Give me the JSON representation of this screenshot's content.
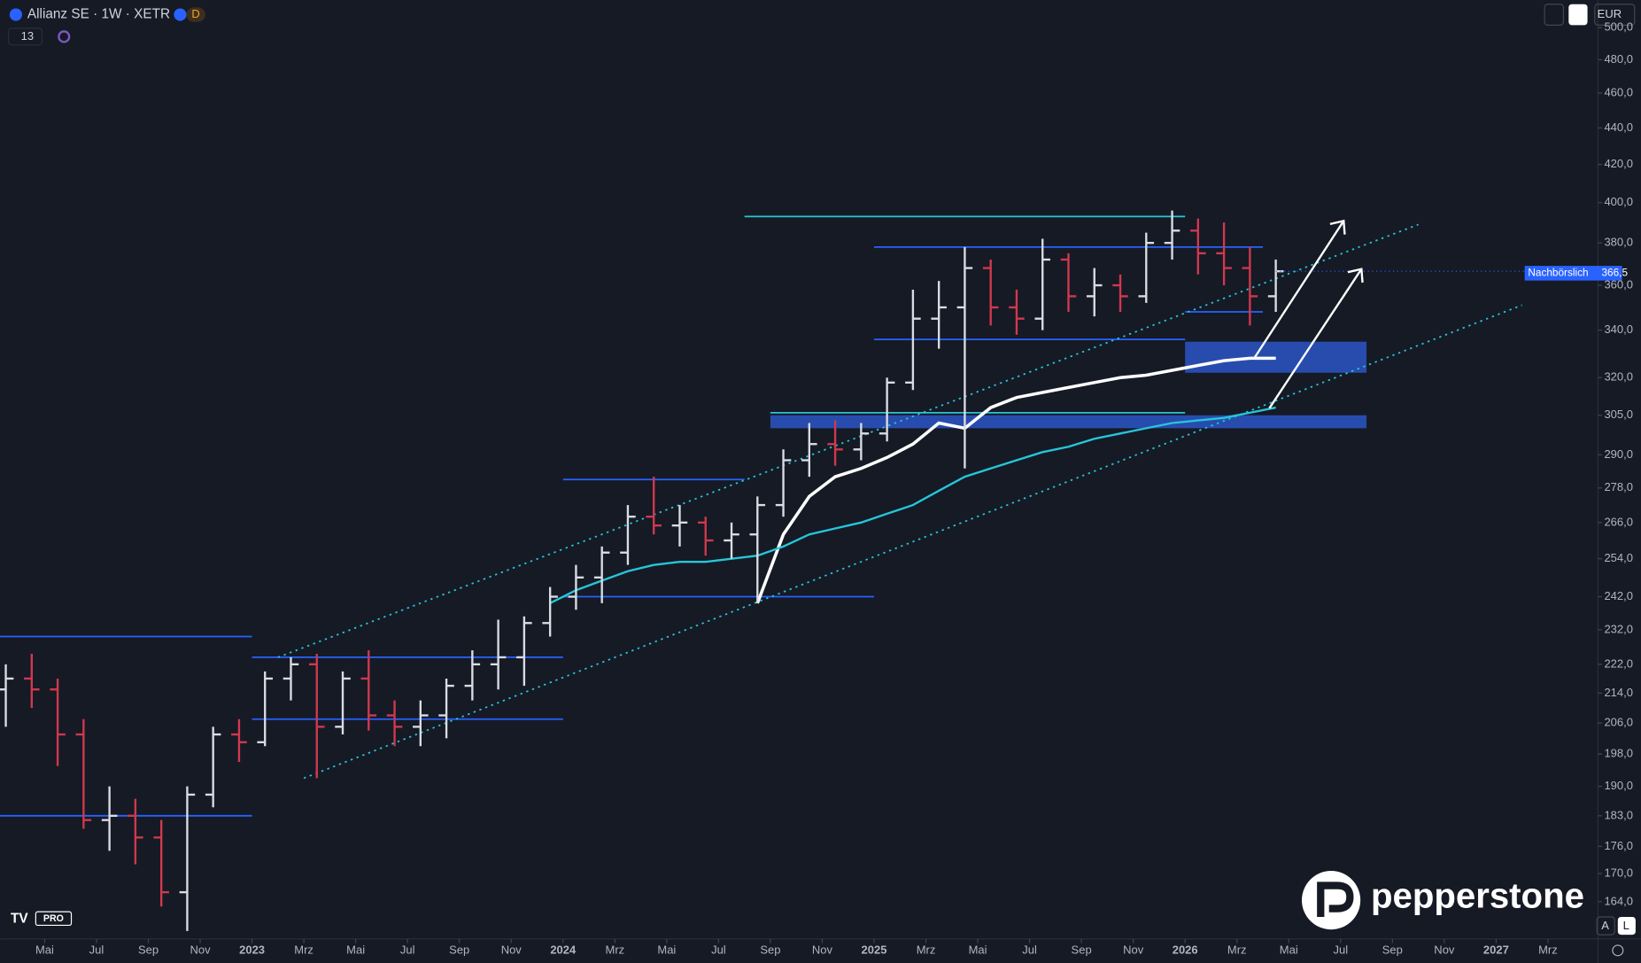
{
  "header": {
    "symbol": "Allianz SE · 1W · XETR",
    "badge": "D",
    "indicator_count": "13",
    "currency": "EUR"
  },
  "price_tag": {
    "label": "Nachbörslich",
    "value": "366,5"
  },
  "logo": {
    "brand": "pepperstone",
    "tv": "PRO"
  },
  "scale_buttons": [
    "A",
    "L"
  ],
  "chart_data": {
    "type": "ohlc",
    "log_scale": true,
    "up_color": "#d9dce3",
    "down_color": "#d0394e",
    "x": [
      "2022-03",
      "2022-04",
      "2022-05",
      "2022-06",
      "2022-07",
      "2022-08",
      "2022-09",
      "2022-10",
      "2022-11",
      "2022-12",
      "2023-01",
      "2023-02",
      "2023-03",
      "2023-04",
      "2023-05",
      "2023-06",
      "2023-07",
      "2023-08",
      "2023-09",
      "2023-10",
      "2023-11",
      "2023-12",
      "2024-01",
      "2024-02",
      "2024-03",
      "2024-04",
      "2024-05",
      "2024-06",
      "2024-07",
      "2024-08",
      "2024-09",
      "2024-10",
      "2024-11",
      "2024-12",
      "2025-01",
      "2025-02",
      "2025-03",
      "2025-04",
      "2025-05",
      "2025-06",
      "2025-07",
      "2025-08",
      "2025-09",
      "2025-10",
      "2025-11",
      "2025-12",
      "2026-01",
      "2026-02",
      "2026-03",
      "2026-04"
    ],
    "open": [
      215,
      218,
      215,
      203,
      182,
      183,
      178,
      166,
      188,
      203,
      201,
      218,
      222,
      205,
      218,
      208,
      205,
      208,
      216,
      222,
      224,
      234,
      242,
      248,
      256,
      268,
      265,
      266,
      260,
      262,
      272,
      288,
      294,
      292,
      298,
      318,
      345,
      350,
      368,
      350,
      345,
      372,
      355,
      360,
      355,
      380,
      386,
      375,
      368,
      355
    ],
    "high": [
      222,
      225,
      218,
      207,
      190,
      187,
      182,
      190,
      205,
      207,
      220,
      224,
      225,
      220,
      226,
      212,
      212,
      218,
      226,
      235,
      236,
      245,
      252,
      258,
      272,
      282,
      272,
      268,
      266,
      275,
      292,
      302,
      303,
      302,
      320,
      358,
      362,
      378,
      372,
      358,
      382,
      375,
      368,
      365,
      385,
      396,
      392,
      390,
      378,
      372
    ],
    "low": [
      205,
      210,
      195,
      180,
      175,
      172,
      163,
      158,
      185,
      196,
      200,
      212,
      192,
      203,
      204,
      200,
      200,
      202,
      212,
      215,
      216,
      230,
      238,
      240,
      252,
      262,
      258,
      255,
      254,
      240,
      268,
      282,
      286,
      288,
      295,
      315,
      332,
      285,
      342,
      338,
      340,
      348,
      346,
      348,
      352,
      372,
      365,
      360,
      342,
      348
    ],
    "close": [
      218,
      215,
      203,
      182,
      183,
      178,
      166,
      188,
      203,
      201,
      218,
      222,
      205,
      218,
      208,
      205,
      208,
      216,
      222,
      224,
      234,
      242,
      248,
      256,
      268,
      265,
      266,
      260,
      262,
      272,
      288,
      294,
      292,
      298,
      318,
      345,
      350,
      368,
      350,
      345,
      372,
      355,
      360,
      355,
      380,
      386,
      375,
      368,
      355,
      366.5
    ],
    "lines": [
      {
        "color": "#ffffff",
        "values": [
          null,
          null,
          null,
          null,
          null,
          null,
          null,
          null,
          null,
          null,
          null,
          null,
          null,
          null,
          null,
          null,
          null,
          null,
          null,
          null,
          null,
          null,
          null,
          null,
          null,
          null,
          null,
          null,
          null,
          240,
          262,
          275,
          282,
          285,
          289,
          294,
          302,
          300,
          308,
          312,
          314,
          316,
          318,
          320,
          321,
          323,
          325,
          327,
          328,
          328
        ]
      },
      {
        "color": "#26c6da",
        "values": [
          null,
          null,
          null,
          null,
          null,
          null,
          null,
          null,
          null,
          null,
          null,
          null,
          null,
          null,
          null,
          null,
          null,
          null,
          null,
          null,
          null,
          240,
          244,
          247,
          250,
          252,
          253,
          253,
          254,
          255,
          258,
          262,
          264,
          266,
          269,
          272,
          277,
          282,
          285,
          288,
          291,
          293,
          296,
          298,
          300,
          302,
          303,
          304,
          306,
          308
        ]
      }
    ],
    "levels": [
      {
        "price": 230,
        "from": "2022-03",
        "to": "2023-01",
        "color": "#2962ff"
      },
      {
        "price": 183,
        "from": "2022-03",
        "to": "2023-01",
        "color": "#2962ff"
      },
      {
        "price": 224,
        "from": "2023-01",
        "to": "2024-01",
        "color": "#2962ff"
      },
      {
        "price": 207,
        "from": "2023-01",
        "to": "2024-01",
        "color": "#2962ff"
      },
      {
        "price": 281,
        "from": "2024-01",
        "to": "2024-08",
        "color": "#2962ff"
      },
      {
        "price": 242,
        "from": "2024-01",
        "to": "2025-01",
        "color": "#2962ff"
      },
      {
        "price": 393,
        "from": "2024-08",
        "to": "2026-01",
        "color": "#26c6da"
      },
      {
        "price": 378,
        "from": "2025-01",
        "to": "2026-04",
        "color": "#2962ff"
      },
      {
        "price": 336,
        "from": "2025-01",
        "to": "2026-01",
        "color": "#2962ff"
      },
      {
        "price": 306,
        "from": "2024-09",
        "to": "2026-01",
        "color": "#26c6da"
      },
      {
        "price": 348,
        "from": "2026-01",
        "to": "2026-04",
        "color": "#2962ff"
      }
    ],
    "zones": [
      {
        "low": 322,
        "high": 335,
        "from": "2026-01",
        "to": "2026-08",
        "color": "#2a52be"
      },
      {
        "low": 300,
        "high": 305,
        "from": "2024-09",
        "to": "2026-08",
        "color": "#2a52be"
      }
    ],
    "trendlines": [
      {
        "from": "2023-02",
        "from_price": 224,
        "to": "2026-10",
        "to_price": 389,
        "color": "#26c6da"
      },
      {
        "from": "2023-03",
        "from_price": 192,
        "to": "2027-02",
        "to_price": 351,
        "color": "#26c6da"
      }
    ],
    "xlim": [
      "2022-03",
      "2027-04"
    ],
    "ylim": [
      156.4,
      518
    ],
    "xticks": [
      {
        "value": "2022-05",
        "label": "Mai"
      },
      {
        "value": "2022-07",
        "label": "Jul"
      },
      {
        "value": "2022-09",
        "label": "Sep"
      },
      {
        "value": "2022-11",
        "label": "Nov"
      },
      {
        "value": "2023-01",
        "label": "2023"
      },
      {
        "value": "2023-03",
        "label": "Mrz"
      },
      {
        "value": "2023-05",
        "label": "Mai"
      },
      {
        "value": "2023-07",
        "label": "Jul"
      },
      {
        "value": "2023-09",
        "label": "Sep"
      },
      {
        "value": "2023-11",
        "label": "Nov"
      },
      {
        "value": "2024-01",
        "label": "2024"
      },
      {
        "value": "2024-03",
        "label": "Mrz"
      },
      {
        "value": "2024-05",
        "label": "Mai"
      },
      {
        "value": "2024-07",
        "label": "Jul"
      },
      {
        "value": "2024-09",
        "label": "Sep"
      },
      {
        "value": "2024-11",
        "label": "Nov"
      },
      {
        "value": "2025-01",
        "label": "2025"
      },
      {
        "value": "2025-03",
        "label": "Mrz"
      },
      {
        "value": "2025-05",
        "label": "Mai"
      },
      {
        "value": "2025-07",
        "label": "Jul"
      },
      {
        "value": "2025-09",
        "label": "Sep"
      },
      {
        "value": "2025-11",
        "label": "Nov"
      },
      {
        "value": "2026-01",
        "label": "2026"
      },
      {
        "value": "2026-03",
        "label": "Mrz"
      },
      {
        "value": "2026-05",
        "label": "Mai"
      },
      {
        "value": "2026-07",
        "label": "Jul"
      },
      {
        "value": "2026-09",
        "label": "Sep"
      },
      {
        "value": "2026-11",
        "label": "Nov"
      },
      {
        "value": "2027-01",
        "label": "2027"
      },
      {
        "value": "2027-03",
        "label": "Mrz"
      }
    ],
    "yticks": [
      {
        "value": 500,
        "label": "500,0"
      },
      {
        "value": 480,
        "label": "480,0"
      },
      {
        "value": 460,
        "label": "460,0"
      },
      {
        "value": 440,
        "label": "440,0"
      },
      {
        "value": 420,
        "label": "420,0"
      },
      {
        "value": 400,
        "label": "400,0"
      },
      {
        "value": 380,
        "label": "380,0"
      },
      {
        "value": 360,
        "label": "360,0"
      },
      {
        "value": 340,
        "label": "340,0"
      },
      {
        "value": 320,
        "label": "320,0"
      },
      {
        "value": 305,
        "label": "305,0"
      },
      {
        "value": 290,
        "label": "290,0"
      },
      {
        "value": 278,
        "label": "278,0"
      },
      {
        "value": 266,
        "label": "266,0"
      },
      {
        "value": 254,
        "label": "254,0"
      },
      {
        "value": 242,
        "label": "242,0"
      },
      {
        "value": 232,
        "label": "232,0"
      },
      {
        "value": 222,
        "label": "222,0"
      },
      {
        "value": 214,
        "label": "214,0"
      },
      {
        "value": 206,
        "label": "206,0"
      },
      {
        "value": 198,
        "label": "198,0"
      },
      {
        "value": 190,
        "label": "190,0"
      },
      {
        "value": 183,
        "label": "183,0"
      },
      {
        "value": 176,
        "label": "176,0"
      },
      {
        "value": 170,
        "label": "170,0"
      },
      {
        "value": 164,
        "label": "164,0"
      }
    ]
  }
}
